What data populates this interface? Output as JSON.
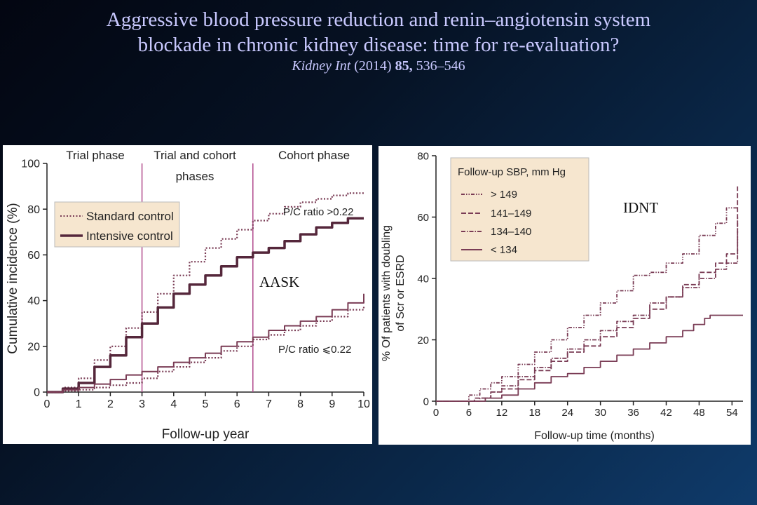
{
  "slide": {
    "title_line1": "Aggressive blood pressure reduction and renin–angiotensin system",
    "title_line2": "blockade in chronic kidney disease: time for re-evaluation?",
    "citation_journal": "Kidney Int",
    "citation_year": "(2014)",
    "citation_volume": "85,",
    "citation_pages": "536–546"
  },
  "chart_data": [
    {
      "type": "line",
      "study_label": "AASK",
      "xlabel": "Follow-up year",
      "ylabel": "Cumulative incidence (%)",
      "xlim": [
        0,
        10
      ],
      "ylim": [
        0,
        100
      ],
      "x_ticks": [
        "0",
        "1",
        "2",
        "3",
        "4",
        "5",
        "6",
        "7",
        "8",
        "9",
        "10"
      ],
      "y_ticks": [
        "0",
        "20",
        "40",
        "60",
        "80",
        "100"
      ],
      "phase_dividers": [
        3,
        6.5
      ],
      "phases": [
        "Trial phase",
        "Trial and cohort",
        "phases",
        "Cohort phase"
      ],
      "legend": [
        "Standard control",
        "Intensive control"
      ],
      "annotations": [
        "P/C ratio >0.22",
        "P/C ratio ⩽0.22"
      ],
      "series": [
        {
          "name": "Standard control",
          "group": "P/C ratio >0.22",
          "style": "dotted",
          "x": [
            0,
            0.5,
            1,
            1.5,
            2,
            2.5,
            3,
            3.5,
            4,
            4.5,
            5,
            5.5,
            6,
            6.5,
            7,
            7.5,
            8,
            8.5,
            9,
            9.5,
            10
          ],
          "y": [
            0,
            2,
            6,
            14,
            20,
            28,
            35,
            43,
            51,
            57,
            63,
            67,
            71,
            75,
            78,
            81,
            83,
            84.5,
            86,
            87,
            87
          ]
        },
        {
          "name": "Intensive control",
          "group": "P/C ratio >0.22",
          "style": "solid-thick",
          "x": [
            0,
            0.5,
            1,
            1.5,
            2,
            2.5,
            3,
            3.5,
            4,
            4.5,
            5,
            5.5,
            6,
            6.5,
            7,
            7.5,
            8,
            8.5,
            9,
            9.5,
            10
          ],
          "y": [
            0,
            1.5,
            4,
            11,
            16,
            24,
            30,
            37,
            43,
            47,
            51,
            55,
            59,
            61,
            63,
            66,
            69,
            72,
            74,
            76,
            76
          ]
        },
        {
          "name": "Standard control",
          "group": "P/C ratio ⩽0.22",
          "style": "dotted",
          "x": [
            0,
            0.5,
            1,
            1.5,
            2,
            2.5,
            3,
            3.5,
            4,
            4.5,
            5,
            5.5,
            6,
            6.5,
            7,
            7.5,
            8,
            8.5,
            9,
            9.5,
            10
          ],
          "y": [
            0,
            0.5,
            1,
            2,
            3,
            4,
            6,
            9,
            11,
            13,
            15,
            18,
            20,
            23,
            25,
            27,
            29,
            31,
            33,
            36,
            38
          ]
        },
        {
          "name": "Intensive control",
          "group": "P/C ratio ⩽0.22",
          "style": "solid",
          "x": [
            0,
            0.5,
            1,
            1.5,
            2,
            2.5,
            3,
            3.5,
            4,
            4.5,
            5,
            5.5,
            6,
            6.5,
            7,
            7.5,
            8,
            8.5,
            9,
            9.5,
            10
          ],
          "y": [
            0,
            1,
            2,
            3.5,
            5.5,
            7.5,
            9,
            11,
            13,
            15,
            17,
            20,
            22,
            24,
            27,
            29,
            31,
            33,
            36,
            39,
            43
          ]
        }
      ]
    },
    {
      "type": "line",
      "study_label": "IDNT",
      "xlabel": "Follow-up time (months)",
      "ylabel_line1": "% Of patients with doubling",
      "ylabel_line2": "of Scr or ESRD",
      "xlim": [
        0,
        56
      ],
      "ylim": [
        0,
        80
      ],
      "x_ticks": [
        "0",
        "6",
        "12",
        "18",
        "24",
        "30",
        "36",
        "42",
        "48",
        "54"
      ],
      "y_ticks": [
        "0",
        "20",
        "40",
        "60",
        "80"
      ],
      "legend_title": "Follow-up SBP, mm Hg",
      "series": [
        {
          "name": "> 149",
          "style": "dashdotdot",
          "x": [
            0,
            5,
            6,
            8,
            10,
            12,
            15,
            18,
            21,
            24,
            27,
            30,
            33,
            36,
            39,
            42,
            45,
            48,
            51,
            53,
            54,
            55
          ],
          "y": [
            0,
            0,
            2,
            4,
            6,
            8,
            12,
            16,
            20,
            24,
            28,
            32,
            36,
            41,
            42,
            45,
            48,
            54,
            58,
            63,
            63,
            63
          ]
        },
        {
          "name": "141–149",
          "style": "dashed",
          "x": [
            0,
            5,
            7,
            10,
            12,
            15,
            18,
            21,
            24,
            27,
            30,
            33,
            36,
            39,
            42,
            45,
            48,
            51,
            53,
            54,
            55
          ],
          "y": [
            0,
            0,
            1,
            3,
            4,
            7,
            10,
            13,
            16,
            18,
            21,
            24,
            27,
            30,
            34,
            38,
            42,
            45,
            48,
            48,
            70
          ]
        },
        {
          "name": "134–140",
          "style": "dashdot",
          "x": [
            0,
            6,
            8,
            10,
            12,
            15,
            18,
            21,
            24,
            27,
            30,
            33,
            36,
            39,
            42,
            45,
            48,
            51,
            53,
            54,
            55
          ],
          "y": [
            0,
            0,
            1,
            3,
            5,
            8,
            11,
            14,
            17,
            20,
            23,
            26,
            28,
            32,
            34,
            37,
            40,
            43,
            45,
            45,
            60
          ]
        },
        {
          "name": "< 134",
          "style": "solid",
          "x": [
            0,
            7,
            9,
            12,
            15,
            18,
            21,
            24,
            27,
            30,
            33,
            36,
            39,
            42,
            45,
            47,
            49,
            50,
            56
          ],
          "y": [
            0,
            0,
            1,
            2,
            4,
            6,
            8,
            9,
            11,
            13,
            15,
            17,
            19,
            21,
            23,
            25,
            27,
            28,
            28
          ]
        }
      ]
    }
  ]
}
